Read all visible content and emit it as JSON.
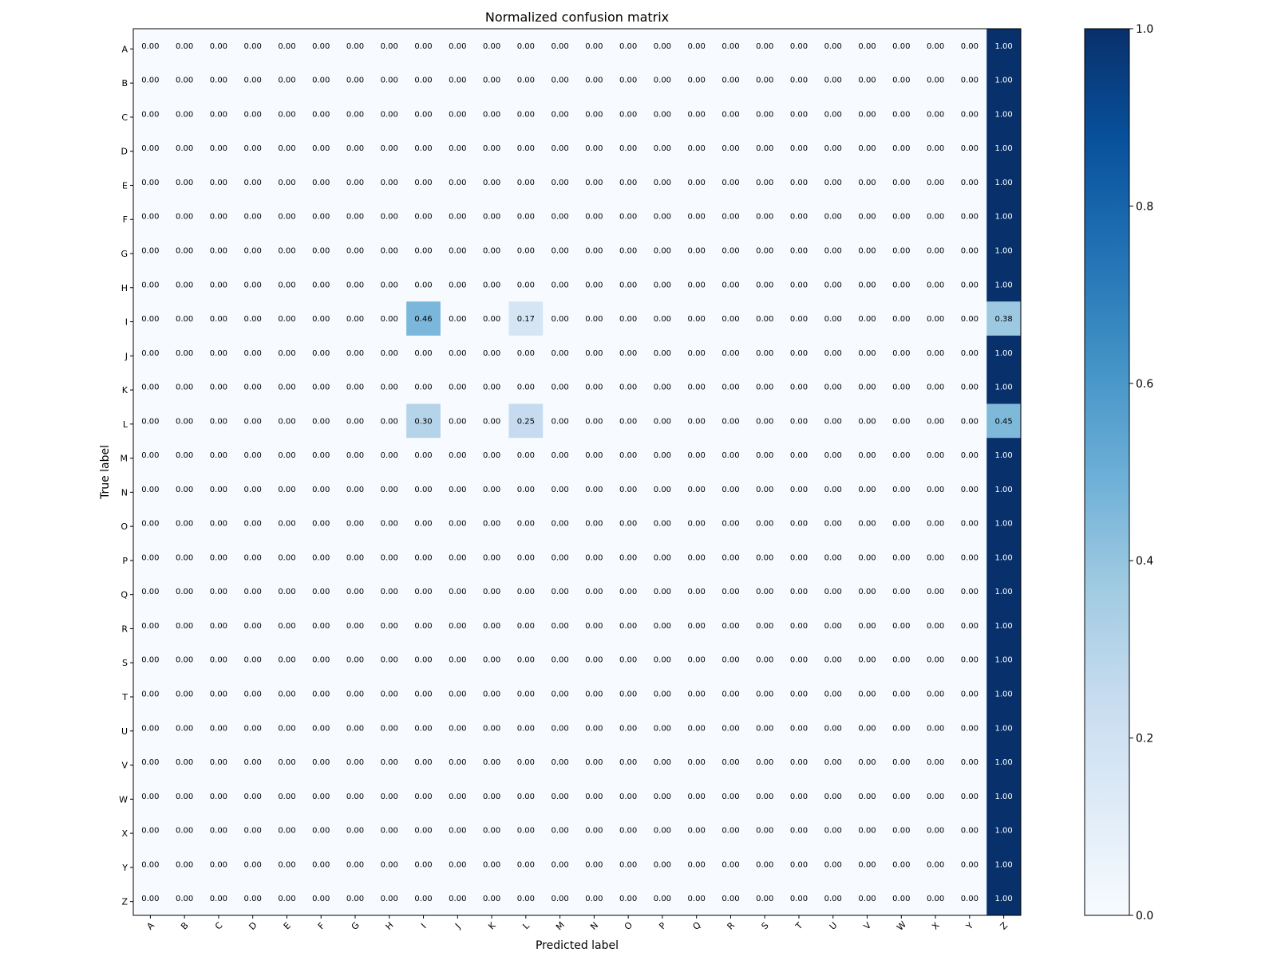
{
  "chart_data": {
    "type": "heatmap",
    "title": "Normalized confusion matrix",
    "xlabel": "Predicted label",
    "ylabel": "True label",
    "x_categories": [
      "A",
      "B",
      "C",
      "D",
      "E",
      "F",
      "G",
      "H",
      "I",
      "J",
      "K",
      "L",
      "M",
      "N",
      "O",
      "P",
      "Q",
      "R",
      "S",
      "T",
      "U",
      "V",
      "W",
      "X",
      "Y",
      "Z"
    ],
    "y_categories": [
      "A",
      "B",
      "C",
      "D",
      "E",
      "F",
      "G",
      "H",
      "I",
      "J",
      "K",
      "L",
      "M",
      "N",
      "O",
      "P",
      "Q",
      "R",
      "S",
      "T",
      "U",
      "V",
      "W",
      "X",
      "Y",
      "Z"
    ],
    "value_format": "0.00",
    "colormap": "Blues",
    "color_low": "#f7fbff",
    "color_high": "#08306b",
    "text_color_dark": "#000000",
    "text_color_light": "#ffffff",
    "values": [
      [
        0,
        0,
        0,
        0,
        0,
        0,
        0,
        0,
        0,
        0,
        0,
        0,
        0,
        0,
        0,
        0,
        0,
        0,
        0,
        0,
        0,
        0,
        0,
        0,
        0,
        1.0
      ],
      [
        0,
        0,
        0,
        0,
        0,
        0,
        0,
        0,
        0,
        0,
        0,
        0,
        0,
        0,
        0,
        0,
        0,
        0,
        0,
        0,
        0,
        0,
        0,
        0,
        0,
        1.0
      ],
      [
        0,
        0,
        0,
        0,
        0,
        0,
        0,
        0,
        0,
        0,
        0,
        0,
        0,
        0,
        0,
        0,
        0,
        0,
        0,
        0,
        0,
        0,
        0,
        0,
        0,
        1.0
      ],
      [
        0,
        0,
        0,
        0,
        0,
        0,
        0,
        0,
        0,
        0,
        0,
        0,
        0,
        0,
        0,
        0,
        0,
        0,
        0,
        0,
        0,
        0,
        0,
        0,
        0,
        1.0
      ],
      [
        0,
        0,
        0,
        0,
        0,
        0,
        0,
        0,
        0,
        0,
        0,
        0,
        0,
        0,
        0,
        0,
        0,
        0,
        0,
        0,
        0,
        0,
        0,
        0,
        0,
        1.0
      ],
      [
        0,
        0,
        0,
        0,
        0,
        0,
        0,
        0,
        0,
        0,
        0,
        0,
        0,
        0,
        0,
        0,
        0,
        0,
        0,
        0,
        0,
        0,
        0,
        0,
        0,
        1.0
      ],
      [
        0,
        0,
        0,
        0,
        0,
        0,
        0,
        0,
        0,
        0,
        0,
        0,
        0,
        0,
        0,
        0,
        0,
        0,
        0,
        0,
        0,
        0,
        0,
        0,
        0,
        1.0
      ],
      [
        0,
        0,
        0,
        0,
        0,
        0,
        0,
        0,
        0,
        0,
        0,
        0,
        0,
        0,
        0,
        0,
        0,
        0,
        0,
        0,
        0,
        0,
        0,
        0,
        0,
        1.0
      ],
      [
        0,
        0,
        0,
        0,
        0,
        0,
        0,
        0,
        0.46,
        0,
        0,
        0.17,
        0,
        0,
        0,
        0,
        0,
        0,
        0,
        0,
        0,
        0,
        0,
        0,
        0,
        0.38
      ],
      [
        0,
        0,
        0,
        0,
        0,
        0,
        0,
        0,
        0,
        0,
        0,
        0,
        0,
        0,
        0,
        0,
        0,
        0,
        0,
        0,
        0,
        0,
        0,
        0,
        0,
        1.0
      ],
      [
        0,
        0,
        0,
        0,
        0,
        0,
        0,
        0,
        0,
        0,
        0,
        0,
        0,
        0,
        0,
        0,
        0,
        0,
        0,
        0,
        0,
        0,
        0,
        0,
        0,
        1.0
      ],
      [
        0,
        0,
        0,
        0,
        0,
        0,
        0,
        0,
        0.3,
        0,
        0,
        0.25,
        0,
        0,
        0,
        0,
        0,
        0,
        0,
        0,
        0,
        0,
        0,
        0,
        0,
        0.45
      ],
      [
        0,
        0,
        0,
        0,
        0,
        0,
        0,
        0,
        0,
        0,
        0,
        0,
        0,
        0,
        0,
        0,
        0,
        0,
        0,
        0,
        0,
        0,
        0,
        0,
        0,
        1.0
      ],
      [
        0,
        0,
        0,
        0,
        0,
        0,
        0,
        0,
        0,
        0,
        0,
        0,
        0,
        0,
        0,
        0,
        0,
        0,
        0,
        0,
        0,
        0,
        0,
        0,
        0,
        1.0
      ],
      [
        0,
        0,
        0,
        0,
        0,
        0,
        0,
        0,
        0,
        0,
        0,
        0,
        0,
        0,
        0,
        0,
        0,
        0,
        0,
        0,
        0,
        0,
        0,
        0,
        0,
        1.0
      ],
      [
        0,
        0,
        0,
        0,
        0,
        0,
        0,
        0,
        0,
        0,
        0,
        0,
        0,
        0,
        0,
        0,
        0,
        0,
        0,
        0,
        0,
        0,
        0,
        0,
        0,
        1.0
      ],
      [
        0,
        0,
        0,
        0,
        0,
        0,
        0,
        0,
        0,
        0,
        0,
        0,
        0,
        0,
        0,
        0,
        0,
        0,
        0,
        0,
        0,
        0,
        0,
        0,
        0,
        1.0
      ],
      [
        0,
        0,
        0,
        0,
        0,
        0,
        0,
        0,
        0,
        0,
        0,
        0,
        0,
        0,
        0,
        0,
        0,
        0,
        0,
        0,
        0,
        0,
        0,
        0,
        0,
        1.0
      ],
      [
        0,
        0,
        0,
        0,
        0,
        0,
        0,
        0,
        0,
        0,
        0,
        0,
        0,
        0,
        0,
        0,
        0,
        0,
        0,
        0,
        0,
        0,
        0,
        0,
        0,
        1.0
      ],
      [
        0,
        0,
        0,
        0,
        0,
        0,
        0,
        0,
        0,
        0,
        0,
        0,
        0,
        0,
        0,
        0,
        0,
        0,
        0,
        0,
        0,
        0,
        0,
        0,
        0,
        1.0
      ],
      [
        0,
        0,
        0,
        0,
        0,
        0,
        0,
        0,
        0,
        0,
        0,
        0,
        0,
        0,
        0,
        0,
        0,
        0,
        0,
        0,
        0,
        0,
        0,
        0,
        0,
        1.0
      ],
      [
        0,
        0,
        0,
        0,
        0,
        0,
        0,
        0,
        0,
        0,
        0,
        0,
        0,
        0,
        0,
        0,
        0,
        0,
        0,
        0,
        0,
        0,
        0,
        0,
        0,
        1.0
      ],
      [
        0,
        0,
        0,
        0,
        0,
        0,
        0,
        0,
        0,
        0,
        0,
        0,
        0,
        0,
        0,
        0,
        0,
        0,
        0,
        0,
        0,
        0,
        0,
        0,
        0,
        1.0
      ],
      [
        0,
        0,
        0,
        0,
        0,
        0,
        0,
        0,
        0,
        0,
        0,
        0,
        0,
        0,
        0,
        0,
        0,
        0,
        0,
        0,
        0,
        0,
        0,
        0,
        0,
        1.0
      ],
      [
        0,
        0,
        0,
        0,
        0,
        0,
        0,
        0,
        0,
        0,
        0,
        0,
        0,
        0,
        0,
        0,
        0,
        0,
        0,
        0,
        0,
        0,
        0,
        0,
        0,
        1.0
      ],
      [
        0,
        0,
        0,
        0,
        0,
        0,
        0,
        0,
        0,
        0,
        0,
        0,
        0,
        0,
        0,
        0,
        0,
        0,
        0,
        0,
        0,
        0,
        0,
        0,
        0,
        1.0
      ]
    ],
    "colorbar": {
      "range": [
        0.0,
        1.0
      ],
      "ticks": [
        "0.0",
        "0.2",
        "0.4",
        "0.6",
        "0.8",
        "1.0"
      ]
    },
    "grid": false
  }
}
